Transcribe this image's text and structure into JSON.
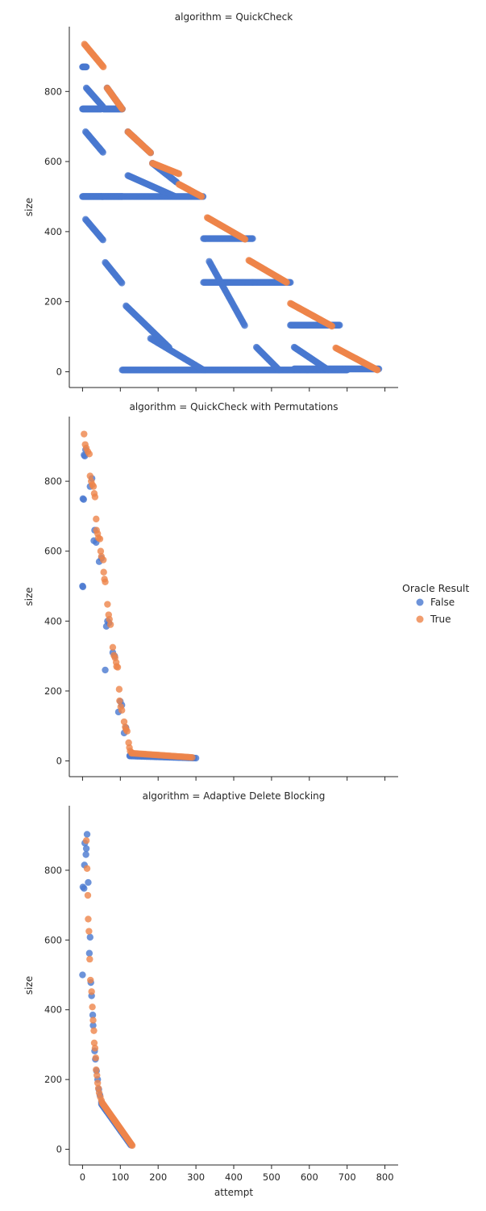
{
  "chart_data": {
    "type": "scatter",
    "facet_by": "algorithm",
    "panels": [
      {
        "title": "algorithm = QuickCheck"
      },
      {
        "title": "algorithm = QuickCheck with Permutations"
      },
      {
        "title": "algorithm = Adaptive Delete Blocking"
      }
    ],
    "xlabel": "attempt",
    "ylabel": "size",
    "xlim": [
      -35,
      835
    ],
    "ylim": [
      -45,
      985
    ],
    "x_ticks": [
      0,
      100,
      200,
      300,
      400,
      500,
      600,
      700,
      800
    ],
    "y_ticks": [
      0,
      200,
      400,
      600,
      800
    ],
    "shared_x_tick_labels_bottom_only": true,
    "grid": false,
    "legend": {
      "title": "Oracle Result",
      "placement": "right",
      "entries": [
        {
          "label": "False",
          "color": "#4878d0"
        },
        {
          "label": "True",
          "color": "#ee854a"
        }
      ]
    },
    "series_colors": {
      "False": "#4878d0",
      "True": "#ee854a"
    },
    "data": {
      "QuickCheck": {
        "False_segments": [
          [
            0,
            50,
            1,
            500,
            500
          ],
          [
            0,
            50,
            1,
            750,
            750
          ],
          [
            0,
            10,
            1,
            870,
            870
          ],
          [
            50,
            105,
            1,
            500,
            500
          ],
          [
            55,
            105,
            1,
            750,
            750
          ],
          [
            105,
            320,
            2,
            500,
            500
          ],
          [
            105,
            320,
            2,
            5,
            5
          ],
          [
            320,
            700,
            2,
            5,
            5
          ],
          [
            320,
            450,
            2,
            255,
            255
          ],
          [
            320,
            450,
            2,
            380,
            380
          ],
          [
            450,
            550,
            2,
            255,
            255
          ],
          [
            550,
            680,
            2,
            133,
            133
          ],
          [
            560,
            785,
            2,
            8,
            8
          ],
          [
            8,
            55,
            2,
            435,
            375
          ],
          [
            60,
            105,
            2,
            312,
            252
          ],
          [
            115,
            230,
            2,
            188,
            68
          ],
          [
            180,
            320,
            3,
            95,
            5
          ],
          [
            8,
            55,
            2,
            685,
            625
          ],
          [
            120,
            245,
            2,
            560,
            500
          ],
          [
            10,
            55,
            2,
            810,
            755
          ],
          [
            65,
            105,
            2,
            810,
            750
          ],
          [
            120,
            180,
            2,
            685,
            625
          ],
          [
            185,
            250,
            2,
            595,
            540
          ],
          [
            335,
            430,
            2,
            315,
            130
          ],
          [
            460,
            520,
            2,
            70,
            5
          ],
          [
            560,
            650,
            2,
            70,
            5
          ]
        ],
        "True_segments": [
          [
            5,
            55,
            2,
            935,
            870
          ],
          [
            65,
            105,
            2,
            810,
            750
          ],
          [
            120,
            180,
            2,
            685,
            625
          ],
          [
            185,
            255,
            2,
            595,
            565
          ],
          [
            255,
            315,
            2,
            535,
            500
          ],
          [
            330,
            430,
            2,
            440,
            378
          ],
          [
            440,
            540,
            2,
            318,
            255
          ],
          [
            550,
            660,
            2,
            195,
            130
          ],
          [
            670,
            780,
            2,
            68,
            5
          ]
        ]
      },
      "QuickCheck with Permutations": {
        "False_points": [
          [
            0,
            500
          ],
          [
            1,
            498
          ],
          [
            1,
            750
          ],
          [
            3,
            748
          ],
          [
            4,
            875
          ],
          [
            6,
            872
          ],
          [
            8,
            890
          ],
          [
            20,
            785
          ],
          [
            25,
            808
          ],
          [
            30,
            630
          ],
          [
            32,
            660
          ],
          [
            36,
            625
          ],
          [
            44,
            570
          ],
          [
            50,
            580
          ],
          [
            60,
            260
          ],
          [
            63,
            385
          ],
          [
            66,
            400
          ],
          [
            70,
            395
          ],
          [
            80,
            310
          ],
          [
            85,
            300
          ],
          [
            95,
            140
          ],
          [
            100,
            170
          ],
          [
            104,
            160
          ],
          [
            110,
            80
          ],
          [
            115,
            95
          ],
          [
            125,
            15
          ]
        ],
        "False_segments": [
          [
            125,
            300,
            5,
            14,
            8
          ]
        ],
        "True_points": [
          [
            4,
            935
          ],
          [
            7,
            905
          ],
          [
            10,
            895
          ],
          [
            14,
            885
          ],
          [
            18,
            878
          ],
          [
            20,
            815
          ],
          [
            23,
            800
          ],
          [
            26,
            790
          ],
          [
            29,
            785
          ],
          [
            31,
            765
          ],
          [
            33,
            755
          ],
          [
            36,
            692
          ],
          [
            37,
            660
          ],
          [
            40,
            650
          ],
          [
            42,
            638
          ],
          [
            46,
            635
          ],
          [
            48,
            600
          ],
          [
            50,
            585
          ],
          [
            55,
            575
          ],
          [
            56,
            540
          ],
          [
            58,
            520
          ],
          [
            60,
            512
          ],
          [
            66,
            448
          ],
          [
            69,
            418
          ],
          [
            71,
            405
          ],
          [
            74,
            390
          ],
          [
            80,
            325
          ],
          [
            83,
            302
          ],
          [
            86,
            295
          ],
          [
            89,
            282
          ],
          [
            90,
            270
          ],
          [
            93,
            268
          ],
          [
            97,
            205
          ],
          [
            98,
            172
          ],
          [
            101,
            155
          ],
          [
            104,
            145
          ],
          [
            110,
            112
          ],
          [
            113,
            97
          ],
          [
            115,
            90
          ],
          [
            118,
            85
          ],
          [
            122,
            52
          ],
          [
            124,
            38
          ],
          [
            126,
            28
          ],
          [
            130,
            24
          ]
        ],
        "True_segments": [
          [
            130,
            290,
            5,
            22,
            10
          ]
        ]
      },
      "Adaptive Delete Blocking": {
        "False_points": [
          [
            0,
            500
          ],
          [
            1,
            752
          ],
          [
            4,
            748
          ],
          [
            5,
            815
          ],
          [
            6,
            878
          ],
          [
            9,
            845
          ],
          [
            10,
            862
          ],
          [
            12,
            903
          ],
          [
            15,
            765
          ],
          [
            18,
            562
          ],
          [
            20,
            608
          ],
          [
            22,
            478
          ],
          [
            24,
            440
          ],
          [
            27,
            385
          ],
          [
            28,
            355
          ],
          [
            32,
            282
          ],
          [
            34,
            258
          ],
          [
            37,
            225
          ],
          [
            40,
            200
          ],
          [
            43,
            172
          ],
          [
            46,
            155
          ],
          [
            50,
            135
          ]
        ],
        "False_segments": [
          [
            50,
            128,
            1.5,
            130,
            12
          ]
        ],
        "True_points": [
          [
            10,
            885
          ],
          [
            12,
            805
          ],
          [
            14,
            728
          ],
          [
            15,
            660
          ],
          [
            17,
            625
          ],
          [
            19,
            545
          ],
          [
            21,
            485
          ],
          [
            24,
            452
          ],
          [
            26,
            408
          ],
          [
            28,
            370
          ],
          [
            30,
            340
          ],
          [
            31,
            305
          ],
          [
            33,
            290
          ],
          [
            35,
            262
          ],
          [
            36,
            228
          ],
          [
            38,
            212
          ],
          [
            40,
            190
          ],
          [
            42,
            175
          ],
          [
            44,
            162
          ],
          [
            47,
            150
          ],
          [
            50,
            140
          ]
        ],
        "True_segments": [
          [
            52,
            132,
            1.5,
            133,
            10
          ]
        ]
      }
    }
  }
}
